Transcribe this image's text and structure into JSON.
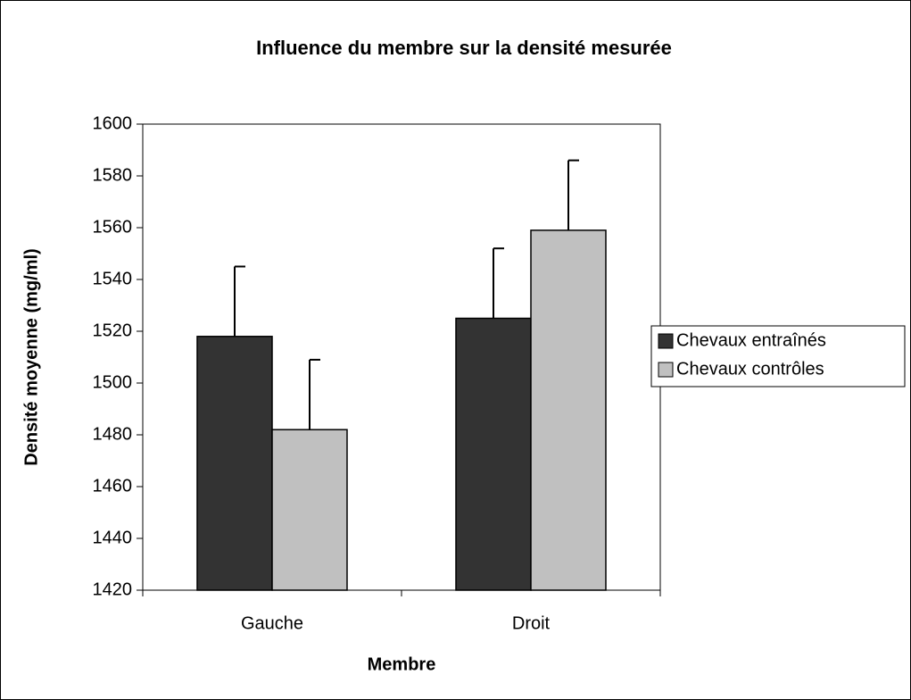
{
  "chart_data": {
    "type": "bar",
    "title": "Influence du membre sur la densité mesurée",
    "x_label": "Membre",
    "y_label": "Densité moyenne (mg/ml)",
    "categories": [
      "Gauche",
      "Droit"
    ],
    "series": [
      {
        "name": "Chevaux entraînés",
        "color": "#333333",
        "values": [
          1518,
          1525
        ],
        "errors": [
          27,
          27
        ]
      },
      {
        "name": "Chevaux contrôles",
        "color": "#c0c0c0",
        "values": [
          1482,
          1559
        ],
        "errors": [
          27,
          27
        ]
      }
    ],
    "ylim": [
      1420,
      1600
    ],
    "yticks": [
      1420,
      1440,
      1460,
      1480,
      1500,
      1520,
      1540,
      1560,
      1580,
      1600
    ],
    "legend": "right"
  }
}
